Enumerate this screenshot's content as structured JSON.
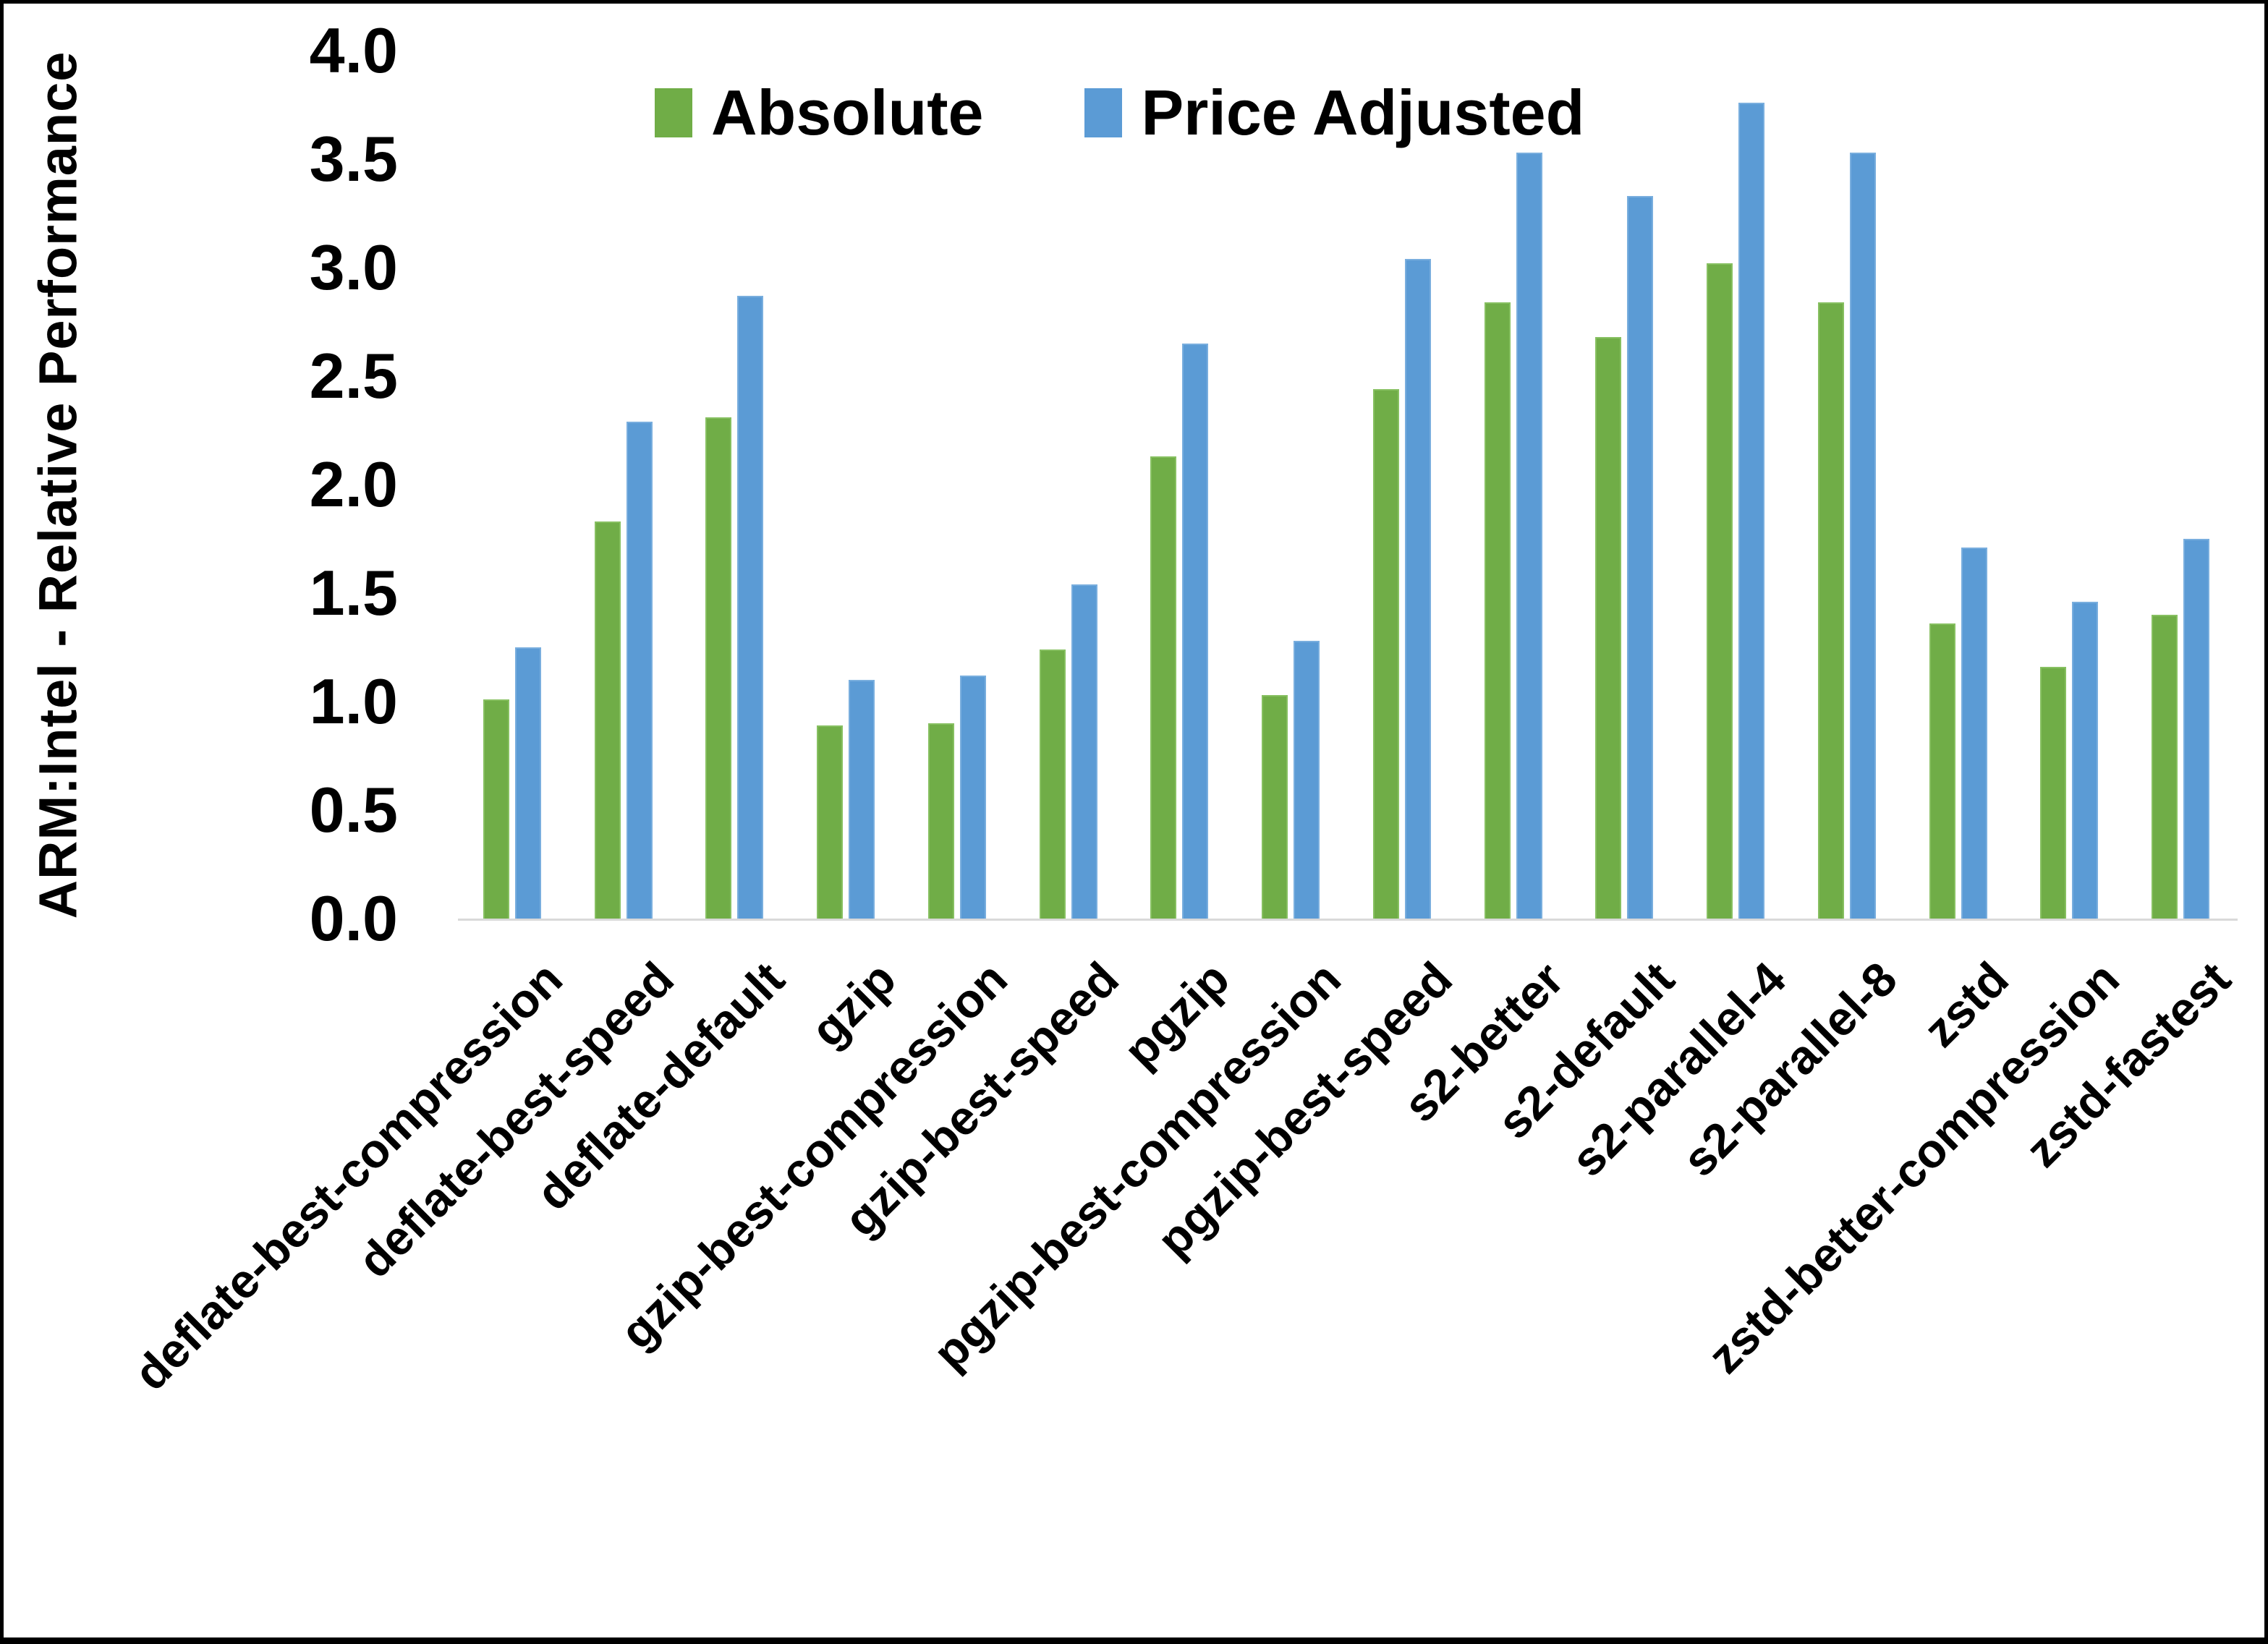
{
  "chart_data": {
    "type": "bar",
    "title": "",
    "xlabel": "",
    "ylabel": "ARM:Intel - Relative Performance",
    "ylim": [
      0.0,
      4.0
    ],
    "ytick_step": 0.5,
    "ytick_labels": [
      "0.0",
      "0.5",
      "1.0",
      "1.5",
      "2.0",
      "2.5",
      "3.0",
      "3.5",
      "4.0"
    ],
    "grid": false,
    "legend_position": "top-center",
    "categories": [
      "deflate-best-compression",
      "deflate-best-speed",
      "deflate-default",
      "gzip",
      "gzip-best-compression",
      "gzip-best-speed",
      "pgzip",
      "pgzip-best-compression",
      "pgzip-best-speed",
      "s2-better",
      "s2-default",
      "s2-parallel-4",
      "s2-parallel-8",
      "zstd",
      "zstd-better-compression",
      "zstd-fastest"
    ],
    "series": [
      {
        "name": "Absolute",
        "color": "#70AD47",
        "values": [
          1.01,
          1.83,
          2.31,
          0.89,
          0.9,
          1.24,
          2.13,
          1.03,
          2.44,
          2.84,
          2.68,
          3.02,
          2.84,
          1.36,
          1.16,
          1.4
        ]
      },
      {
        "name": "Price Adjusted",
        "color": "#5B9BD5",
        "values": [
          1.25,
          2.29,
          2.87,
          1.1,
          1.12,
          1.54,
          2.65,
          1.28,
          3.04,
          3.53,
          3.33,
          3.76,
          3.53,
          1.71,
          1.46,
          1.75
        ]
      }
    ]
  },
  "colors": {
    "axis_line": "#D9D9D9",
    "text": "#000000",
    "background": "#FFFFFF",
    "frame_border": "#000000"
  }
}
